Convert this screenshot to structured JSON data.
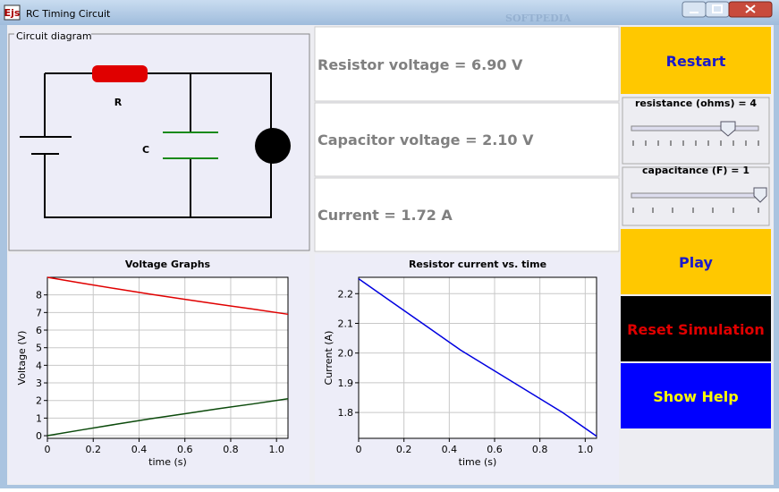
{
  "window": {
    "logo": "Ejs",
    "title": "RC Timing Circuit",
    "watermark": "SOFTPEDIA"
  },
  "circuit": {
    "legend": "Circuit diagram",
    "resistor_label": "R",
    "capacitor_label": "C"
  },
  "readouts": [
    "Resistor voltage = 6.90 V",
    "Capacitor voltage = 2.10 V",
    "Current = 1.72 A"
  ],
  "controls": {
    "restart": "Restart",
    "resistance": "resistance (ohms) = 4",
    "capacitance": "capacitance (F) = 1",
    "play": "Play",
    "reset": "Reset Simulation",
    "help": "Show Help"
  },
  "chart_data": [
    {
      "type": "line",
      "title": "Voltage Graphs",
      "x_label": "time (s)",
      "y_label": "Voltage (V)",
      "x": [
        0,
        0.15,
        0.3,
        0.45,
        0.6,
        0.75,
        0.9,
        1.05
      ],
      "series": [
        {
          "color": "#e00000",
          "values": [
            9,
            8.67,
            8.35,
            8.04,
            7.75,
            7.46,
            7.19,
            6.9
          ]
        },
        {
          "color": "#0b4a0b",
          "values": [
            0,
            0.33,
            0.65,
            0.96,
            1.25,
            1.54,
            1.81,
            2.1
          ]
        }
      ],
      "xlim": [
        0,
        1.05
      ],
      "xticks": [
        0,
        0.2,
        0.4,
        0.6,
        0.8,
        {
          "value": 1,
          "label": "1.0"
        }
      ],
      "ylim": [
        -0.15,
        9
      ],
      "yticks": [
        0,
        1,
        2,
        3,
        4,
        5,
        6,
        7,
        8
      ],
      "grid": true
    },
    {
      "type": "line",
      "title": "Resistor current vs. time",
      "x_label": "time (s)",
      "y_label": "Current (A)",
      "x": [
        0,
        0.15,
        0.3,
        0.45,
        0.6,
        0.75,
        0.9,
        1.05
      ],
      "series": [
        {
          "color": "#0000e0",
          "values": [
            2.25,
            2.17,
            2.09,
            2.01,
            1.94,
            1.87,
            1.8,
            1.72
          ]
        }
      ],
      "xlim": [
        0,
        1.05
      ],
      "xticks": [
        0,
        0.2,
        0.4,
        0.6,
        0.8,
        {
          "value": 1,
          "label": "1.0"
        }
      ],
      "ylim": [
        1.713,
        2.255
      ],
      "yticks": [
        1.8,
        1.9,
        {
          "value": 2,
          "label": "2.0"
        },
        2.1,
        2.2
      ],
      "grid": true
    }
  ]
}
